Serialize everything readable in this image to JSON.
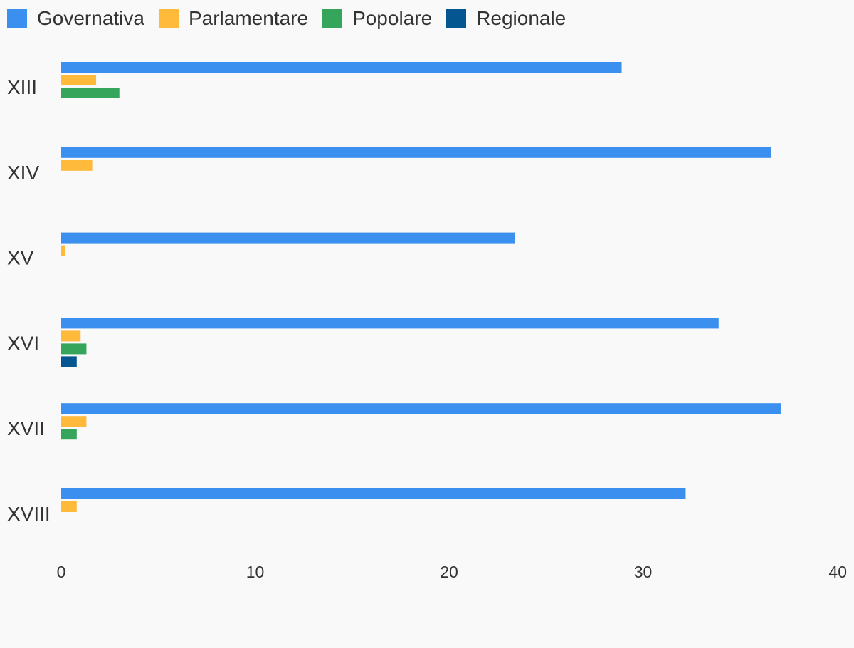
{
  "chart_data": {
    "type": "bar",
    "orientation": "horizontal",
    "categories": [
      "XIII",
      "XIV",
      "XV",
      "XVI",
      "XVII",
      "XVIII"
    ],
    "series": [
      {
        "name": "Governativa",
        "color": "#3a8fef",
        "values": [
          28.9,
          36.6,
          23.4,
          33.9,
          37.1,
          32.2
        ]
      },
      {
        "name": "Parlamentare",
        "color": "#ffb93b",
        "values": [
          1.8,
          1.6,
          0.2,
          1.0,
          1.3,
          0.8
        ]
      },
      {
        "name": "Popolare",
        "color": "#34a55a",
        "values": [
          3.0,
          0,
          0,
          1.3,
          0.8,
          0
        ]
      },
      {
        "name": "Regionale",
        "color": "#03568f",
        "values": [
          0,
          0,
          0,
          0.8,
          0,
          0
        ]
      }
    ],
    "xlim": [
      0,
      40
    ],
    "xticks": [
      0,
      10,
      20,
      30,
      40
    ],
    "title": "",
    "xlabel": "",
    "ylabel": "",
    "grid": false,
    "legend_position": "top-left"
  }
}
